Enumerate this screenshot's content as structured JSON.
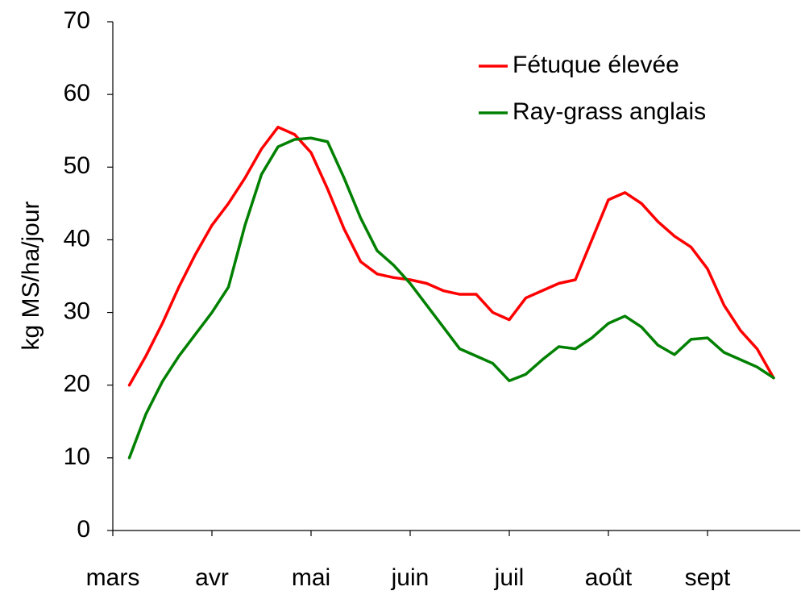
{
  "chart_data": {
    "type": "line",
    "y_label": "kg MS/ha/jour",
    "categories": [
      "mars",
      null,
      null,
      null,
      null,
      null,
      "avr",
      null,
      null,
      null,
      null,
      null,
      "mai",
      null,
      null,
      null,
      null,
      null,
      "juin",
      null,
      null,
      null,
      null,
      null,
      "juil",
      null,
      null,
      null,
      null,
      null,
      "août",
      null,
      null,
      null,
      null,
      null,
      "sept",
      null,
      null,
      null,
      null
    ],
    "series": [
      {
        "name": "Fétuque élevée",
        "color": "#ff0000",
        "values": [
          null,
          20,
          24,
          28.5,
          33.5,
          38,
          42,
          45,
          48.5,
          52.5,
          55.5,
          54.5,
          52,
          47,
          41.5,
          37,
          35.3,
          34.8,
          34.5,
          34,
          33,
          32.5,
          32.5,
          30,
          29,
          32,
          33,
          34,
          34.5,
          40,
          45.5,
          46.5,
          45,
          42.5,
          40.5,
          39,
          36,
          31,
          27.5,
          25,
          21
        ]
      },
      {
        "name": "Ray-grass anglais",
        "color": "#008000",
        "values": [
          null,
          10,
          16,
          20.5,
          24,
          27,
          30,
          33.5,
          42,
          49,
          52.8,
          53.8,
          54,
          53.5,
          48.5,
          43,
          38.5,
          36.5,
          34,
          31,
          28,
          25,
          24,
          23,
          20.6,
          21.5,
          23.5,
          25.3,
          25,
          26.5,
          28.5,
          29.5,
          28,
          25.5,
          24.2,
          26.3,
          26.5,
          24.5,
          23.5,
          22.5,
          21
        ]
      }
    ],
    "ylim": [
      0,
      70
    ],
    "yticks": [
      0,
      10,
      20,
      30,
      40,
      50,
      60,
      70
    ],
    "grid": false,
    "legend": "upper right"
  }
}
